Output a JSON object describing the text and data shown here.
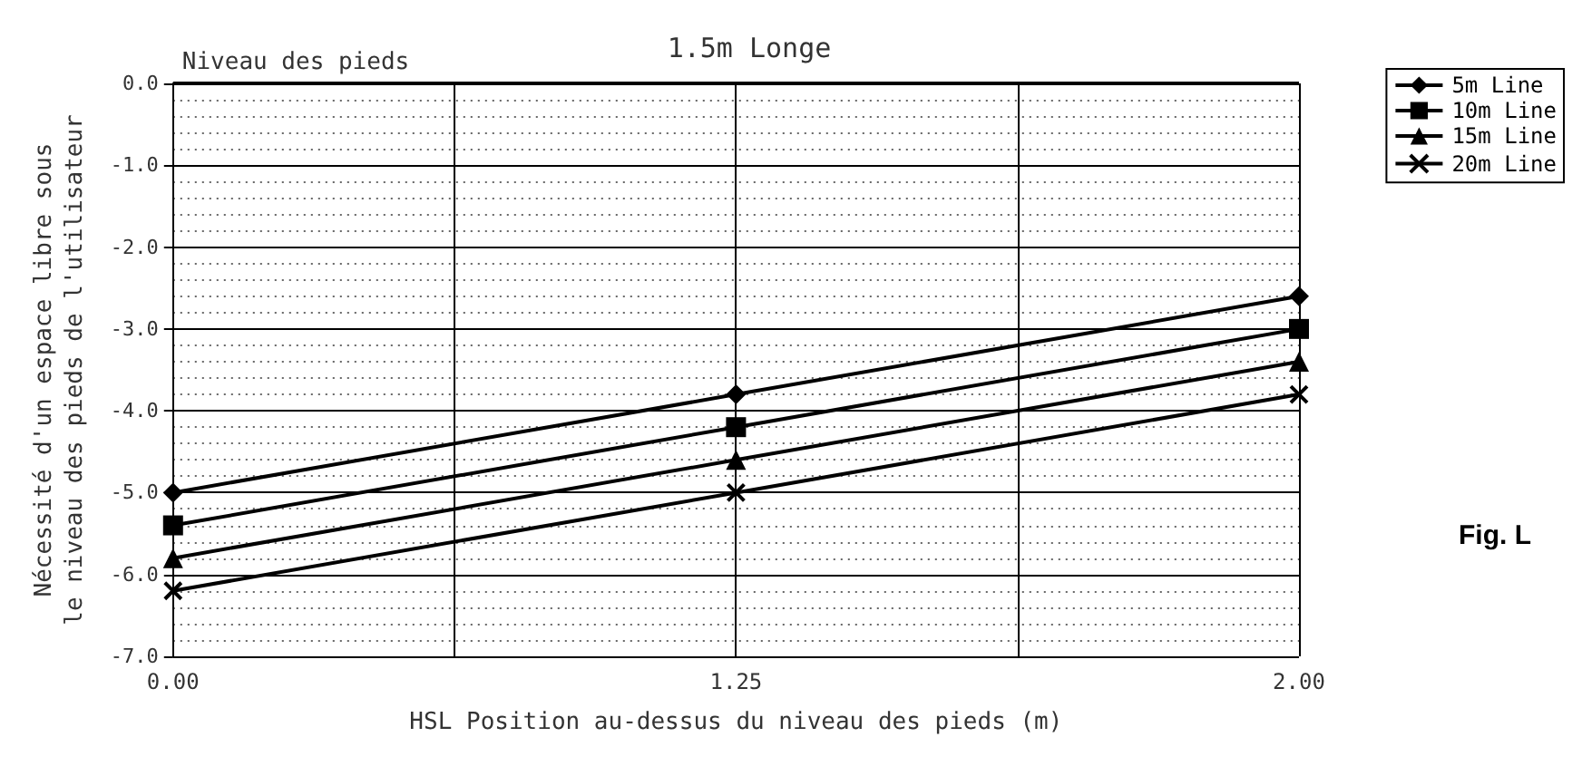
{
  "chart_data": {
    "type": "line",
    "title": "1.5m Longe",
    "xlabel": "HSL Position au-dessus du niveau des pieds (m)",
    "ylabel": "Nécessité d'un espace libre sous\nle niveau des pieds de l'utilisateur",
    "categories": [
      "0.00",
      "1.25",
      "2.00"
    ],
    "series": [
      {
        "name": "5m Line",
        "color": "#000000",
        "marker": "diamond",
        "values": [
          -5.0,
          -3.8,
          -2.6
        ]
      },
      {
        "name": "10m Line",
        "color": "#000000",
        "marker": "square",
        "values": [
          -5.4,
          -4.2,
          -3.0
        ]
      },
      {
        "name": "15m Line",
        "color": "#000000",
        "marker": "triangle",
        "values": [
          -5.8,
          -4.6,
          -3.4
        ]
      },
      {
        "name": "20m Line",
        "color": "#000000",
        "marker": "cross",
        "values": [
          -6.2,
          -5.0,
          -3.8
        ]
      }
    ],
    "ylim": [
      -7,
      0
    ],
    "yticks": [
      {
        "value": 0,
        "label": "0.0"
      },
      {
        "value": -1,
        "label": "-1.0"
      },
      {
        "value": -2,
        "label": "-2.0"
      },
      {
        "value": -3,
        "label": "-3.0"
      },
      {
        "value": -4,
        "label": "-4.0"
      },
      {
        "value": -5,
        "label": "-5.0"
      },
      {
        "value": -6,
        "label": "-6.0"
      },
      {
        "value": -7,
        "label": "-7.0"
      }
    ],
    "ref_lines": [
      {
        "axis": "y",
        "value": 0,
        "label": "Niveau des pieds"
      }
    ],
    "annotations": [
      "Fig. L"
    ],
    "grid": true,
    "legend": "top right",
    "line_style": "solid"
  }
}
